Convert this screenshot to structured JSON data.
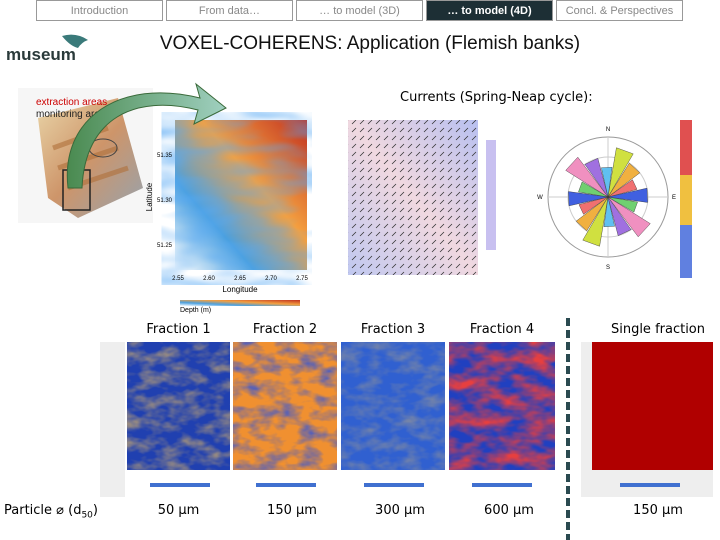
{
  "nav": {
    "tabs": [
      "Introduction",
      "From data…",
      "… to model (3D)",
      "… to model (4D)",
      "Concl. & Perspectives"
    ]
  },
  "logo": "museum",
  "title": "VOXEL-COHERENS: Application (Flemish banks)",
  "map": {
    "labels": [
      "extraction areas",
      "monitoring areas"
    ]
  },
  "depth_map": {
    "y_label": "Latitude",
    "x_label": "Longitude",
    "legend": "Depth (m)",
    "yticks": [
      "51.35",
      "51.30",
      "51.25"
    ],
    "xticks": [
      "2.55",
      "2.60",
      "2.65",
      "2.70",
      "2.75"
    ]
  },
  "currents": {
    "title": "Currents (Spring-Neap cycle):",
    "rose_labels": [
      "N",
      "E",
      "S",
      "W"
    ]
  },
  "fractions": [
    {
      "label": "Fraction 1",
      "size": "50 µm"
    },
    {
      "label": "Fraction 2",
      "size": "150 µm"
    },
    {
      "label": "Fraction 3",
      "size": "300 µm"
    },
    {
      "label": "Fraction 4",
      "size": "600 µm"
    },
    {
      "label": "Single fraction",
      "size": "150 µm"
    }
  ],
  "particle_label": {
    "prefix": "Particle ⌀ (d",
    "sub": "50",
    "suffix": ")"
  }
}
